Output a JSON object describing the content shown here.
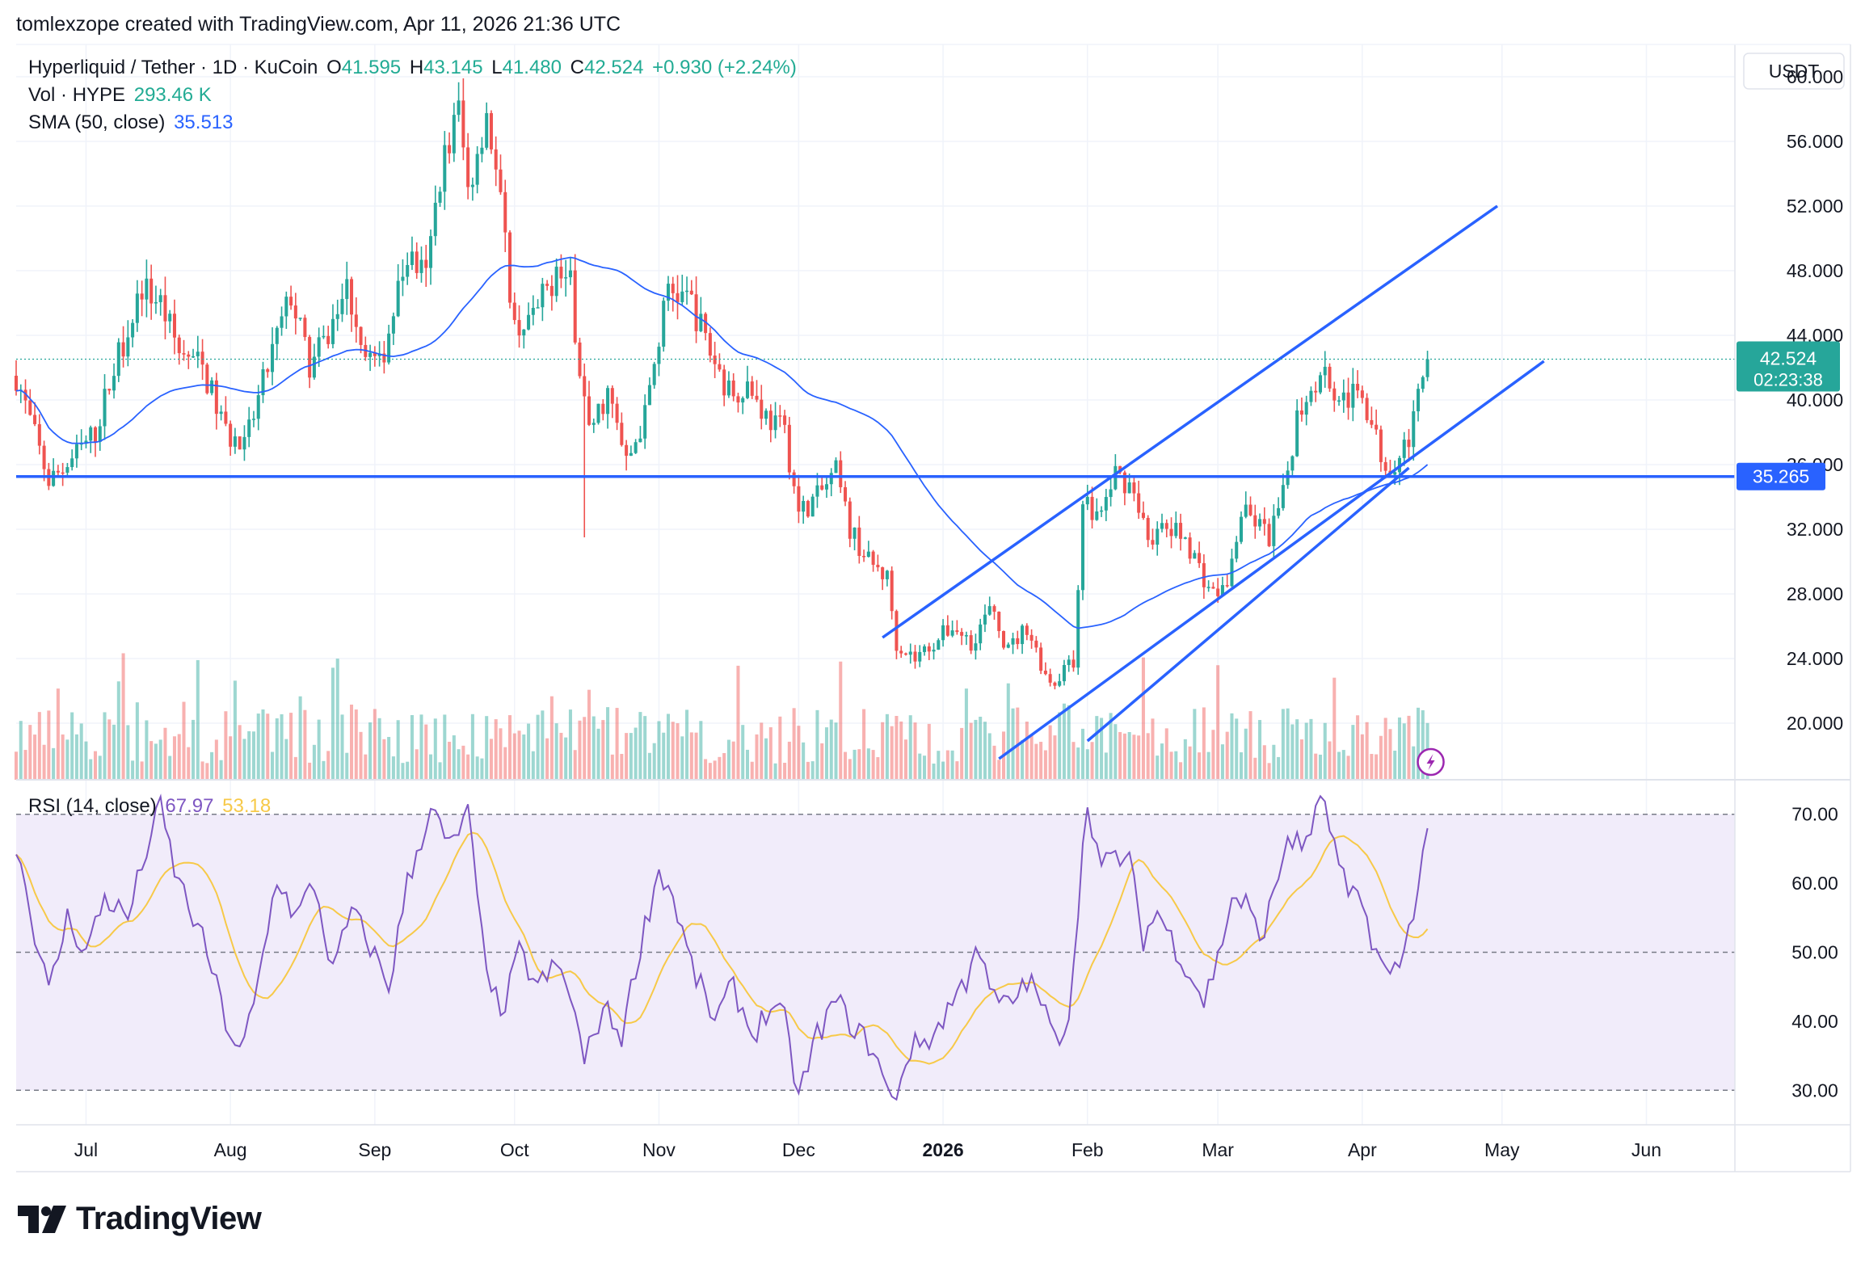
{
  "attribution": "tomlexzope created with TradingView.com, Apr 11, 2026 21:36 UTC",
  "brand": "TradingView",
  "currency_label": "USDT",
  "legend": {
    "symbol": "Hyperliquid / Tether · 1D · KuCoin",
    "open_label": "O",
    "open": "41.595",
    "high_label": "H",
    "high": "43.145",
    "low_label": "L",
    "low": "41.480",
    "close_label": "C",
    "close": "42.524",
    "change": "+0.930 (+2.24%)",
    "vol_label": "Vol · HYPE",
    "vol_value": "293.46 K",
    "sma_label": "SMA (50, close)",
    "sma_value": "35.513",
    "rsi_label": "RSI (14, close)",
    "rsi_value": "67.97",
    "rsi_ma_value": "53.18"
  },
  "colors": {
    "up": "#26a69a",
    "down": "#ef5350",
    "line": "#2962ff",
    "rsi": "#7e57c2",
    "rsi_ma": "#f7c948",
    "rsi_band": "#f1ecfa"
  },
  "price_badge": {
    "price": "42.524",
    "countdown": "02:23:38"
  },
  "support_badge": "35.265",
  "chart_data": [
    {
      "type": "candlestick",
      "title": "Hyperliquid / Tether · 1D · KuCoin",
      "ylim": [
        16.5,
        62
      ],
      "y_ticks": [
        20,
        24,
        28,
        32,
        36,
        40,
        44,
        48,
        52,
        56,
        60
      ],
      "y_tick_labels": [
        "20.000",
        "24.000",
        "28.000",
        "32.000",
        "36.000",
        "40.000",
        "44.000",
        "48.000",
        "52.000",
        "56.000",
        "60.000"
      ],
      "x_labels": [
        {
          "label": "Jul",
          "day": 8,
          "bold": false
        },
        {
          "label": "Aug",
          "day": 39,
          "bold": false
        },
        {
          "label": "Sep",
          "day": 70,
          "bold": false
        },
        {
          "label": "Oct",
          "day": 100,
          "bold": false
        },
        {
          "label": "Nov",
          "day": 131,
          "bold": false
        },
        {
          "label": "Dec",
          "day": 161,
          "bold": false
        },
        {
          "label": "2026",
          "day": 192,
          "bold": true
        },
        {
          "label": "Feb",
          "day": 223,
          "bold": false
        },
        {
          "label": "Mar",
          "day": 251,
          "bold": false
        },
        {
          "label": "Apr",
          "day": 282,
          "bold": false
        },
        {
          "label": "May",
          "day": 312,
          "bold": false
        },
        {
          "label": "Jun",
          "day": 343,
          "bold": false
        }
      ],
      "x_range": [
        -7,
        362
      ],
      "last_day": 296,
      "anchors": [
        [
          -7,
          41.5
        ],
        [
          0,
          35
        ],
        [
          4,
          36
        ],
        [
          10,
          38
        ],
        [
          14,
          42
        ],
        [
          20,
          47
        ],
        [
          24,
          46
        ],
        [
          28,
          43
        ],
        [
          33,
          42
        ],
        [
          38,
          38
        ],
        [
          42,
          37
        ],
        [
          48,
          43
        ],
        [
          52,
          46.5
        ],
        [
          56,
          42
        ],
        [
          60,
          44
        ],
        [
          64,
          47
        ],
        [
          68,
          43
        ],
        [
          71,
          42
        ],
        [
          77,
          49
        ],
        [
          81,
          47.5
        ],
        [
          84,
          54
        ],
        [
          88,
          58
        ],
        [
          90,
          53
        ],
        [
          94,
          58
        ],
        [
          97,
          52
        ],
        [
          100,
          44.5
        ],
        [
          104,
          45
        ],
        [
          109,
          48
        ],
        [
          112,
          47
        ],
        [
          114,
          42
        ],
        [
          116,
          38
        ],
        [
          120,
          40.5
        ],
        [
          124,
          36
        ],
        [
          128,
          39
        ],
        [
          133,
          47
        ],
        [
          138,
          46
        ],
        [
          142,
          43
        ],
        [
          146,
          40.5
        ],
        [
          150,
          41
        ],
        [
          154,
          39
        ],
        [
          158,
          38
        ],
        [
          161,
          33
        ],
        [
          165,
          34
        ],
        [
          169,
          35.5
        ],
        [
          172,
          32
        ],
        [
          176,
          30
        ],
        [
          180,
          29
        ],
        [
          182,
          25
        ],
        [
          186,
          24
        ],
        [
          190,
          25
        ],
        [
          194,
          26
        ],
        [
          198,
          25
        ],
        [
          202,
          27
        ],
        [
          206,
          24.5
        ],
        [
          210,
          26
        ],
        [
          214,
          23
        ],
        [
          216,
          22.5
        ],
        [
          218,
          23.5
        ],
        [
          220,
          23.5
        ],
        [
          222,
          34
        ],
        [
          224,
          33
        ],
        [
          226,
          33
        ],
        [
          229,
          35.5
        ],
        [
          233,
          34.5
        ],
        [
          236,
          31.5
        ],
        [
          240,
          32
        ],
        [
          244,
          31.5
        ],
        [
          248,
          29
        ],
        [
          250,
          28
        ],
        [
          253,
          28.5
        ],
        [
          256,
          33
        ],
        [
          259,
          32.5
        ],
        [
          262,
          31.5
        ],
        [
          265,
          34
        ],
        [
          268,
          39
        ],
        [
          271,
          41
        ],
        [
          274,
          42
        ],
        [
          276,
          40.5
        ],
        [
          279,
          40
        ],
        [
          282,
          40.5
        ],
        [
          285,
          37.5
        ],
        [
          287,
          36
        ],
        [
          290,
          36.5
        ],
        [
          293,
          38.5
        ],
        [
          296,
          42.524
        ]
      ],
      "wick_spike": {
        "day": 115,
        "low": 31.5
      },
      "volume_note": "volume bars at bottom of price pane, up/down colored",
      "sma_period": 50,
      "sma_last_value": 35.513,
      "horizontal_level": 35.265,
      "last_price": 42.524,
      "trendlines": [
        {
          "from": [
            179,
            25.3
          ],
          "to": [
            311,
            52.0
          ]
        },
        {
          "from": [
            204,
            17.8
          ],
          "to": [
            321,
            42.4
          ]
        },
        {
          "from": [
            223,
            18.9
          ],
          "to": [
            292,
            35.8
          ]
        }
      ]
    },
    {
      "type": "line",
      "title": "RSI (14, close)",
      "ylim": [
        25,
        75
      ],
      "y_ticks": [
        30,
        40,
        50,
        60,
        70
      ],
      "y_tick_labels": [
        "30.00",
        "40.00",
        "50.00",
        "60.00",
        "70.00"
      ],
      "band": [
        30,
        70
      ],
      "midline": 50,
      "series": [
        {
          "name": "RSI",
          "color": "#7e57c2",
          "last_value": 67.97
        },
        {
          "name": "RSI-MA",
          "color": "#f7c948",
          "last_value": 53.18
        }
      ],
      "rsi_anchors": [
        [
          -7,
          66
        ],
        [
          -3,
          53
        ],
        [
          0,
          44
        ],
        [
          4,
          55
        ],
        [
          8,
          50
        ],
        [
          12,
          58
        ],
        [
          17,
          55
        ],
        [
          21,
          65
        ],
        [
          24,
          71
        ],
        [
          27,
          62
        ],
        [
          31,
          55
        ],
        [
          34,
          50
        ],
        [
          38,
          40
        ],
        [
          41,
          35
        ],
        [
          44,
          42
        ],
        [
          49,
          61
        ],
        [
          53,
          55
        ],
        [
          57,
          60
        ],
        [
          61,
          47
        ],
        [
          65,
          56
        ],
        [
          69,
          51
        ],
        [
          73,
          45
        ],
        [
          77,
          60
        ],
        [
          82,
          71
        ],
        [
          86,
          65
        ],
        [
          90,
          70
        ],
        [
          93,
          52
        ],
        [
          97,
          40
        ],
        [
          101,
          50
        ],
        [
          105,
          45
        ],
        [
          109,
          48
        ],
        [
          112,
          44
        ],
        [
          115,
          34
        ],
        [
          119,
          42
        ],
        [
          123,
          38
        ],
        [
          127,
          51
        ],
        [
          131,
          62
        ],
        [
          134,
          58
        ],
        [
          138,
          48
        ],
        [
          143,
          40
        ],
        [
          147,
          45
        ],
        [
          151,
          38
        ],
        [
          155,
          42
        ],
        [
          158,
          40
        ],
        [
          161,
          29
        ],
        [
          165,
          38
        ],
        [
          169,
          43
        ],
        [
          173,
          39
        ],
        [
          177,
          36
        ],
        [
          181,
          28
        ],
        [
          185,
          36
        ],
        [
          190,
          38
        ],
        [
          194,
          43
        ],
        [
          197,
          46
        ],
        [
          199,
          52
        ],
        [
          202,
          44
        ],
        [
          206,
          42
        ],
        [
          210,
          46
        ],
        [
          213,
          43
        ],
        [
          216,
          37
        ],
        [
          219,
          41
        ],
        [
          221,
          57
        ],
        [
          223,
          72
        ],
        [
          226,
          62
        ],
        [
          229,
          64
        ],
        [
          232,
          63
        ],
        [
          235,
          52
        ],
        [
          238,
          56
        ],
        [
          241,
          52
        ],
        [
          245,
          47
        ],
        [
          248,
          43
        ],
        [
          251,
          49
        ],
        [
          254,
          58
        ],
        [
          257,
          57
        ],
        [
          260,
          52
        ],
        [
          263,
          58
        ],
        [
          266,
          67
        ],
        [
          269,
          65
        ],
        [
          272,
          70
        ],
        [
          274,
          72
        ],
        [
          276,
          65
        ],
        [
          279,
          58
        ],
        [
          282,
          57
        ],
        [
          285,
          50
        ],
        [
          288,
          46
        ],
        [
          291,
          50
        ],
        [
          294,
          60
        ],
        [
          296,
          67.97
        ]
      ]
    }
  ]
}
